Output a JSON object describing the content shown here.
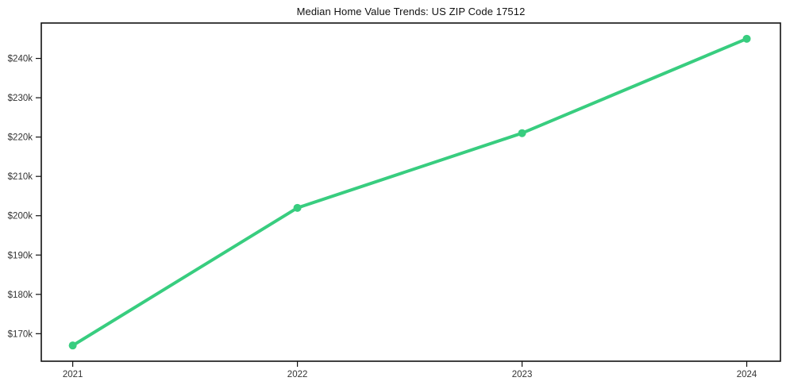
{
  "title": "Median Home Value Trends: US ZIP Code 17512",
  "chart_data": {
    "type": "line",
    "title": "Median Home Value Trends: US ZIP Code 17512",
    "xlabel": "",
    "ylabel": "",
    "x": [
      2021,
      2022,
      2023,
      2024
    ],
    "x_tick_labels": [
      "2021",
      "2022",
      "2023",
      "2024"
    ],
    "series": [
      {
        "name": "Median Home Value",
        "values": [
          167000,
          202000,
          221000,
          245000
        ]
      }
    ],
    "y_ticks": [
      170000,
      180000,
      190000,
      200000,
      210000,
      220000,
      230000,
      240000
    ],
    "y_tick_labels": [
      "$170k",
      "$180k",
      "$190k",
      "$200k",
      "$210k",
      "$220k",
      "$230k",
      "$240k"
    ],
    "xlim": [
      2020.86,
      2024.15
    ],
    "ylim": [
      163000,
      249000
    ],
    "grid": false,
    "legend": null,
    "line_color": "#38cd7f",
    "marker": "circle",
    "axis_color": "#111111",
    "tick_label_color": "#333333"
  }
}
